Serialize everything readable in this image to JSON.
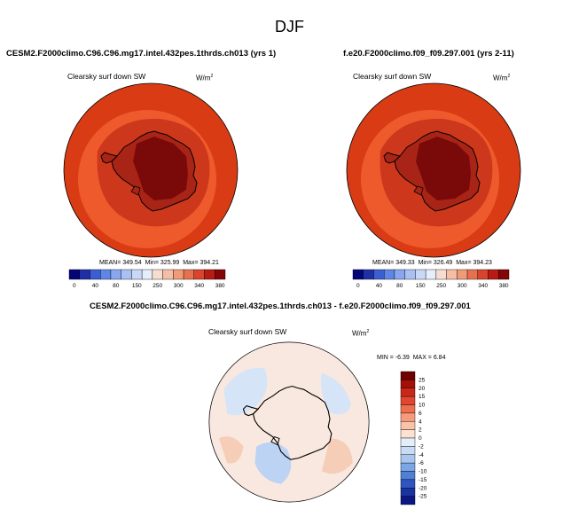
{
  "page": {
    "title": "DJF"
  },
  "panels": [
    {
      "title": "CESM2.F2000climo.C96.C96.mg17.intel.432pes.1thrds.ch013 (yrs 1)",
      "variable": "Clearsky surf down SW",
      "units_base": "W/m",
      "units_exp": "2",
      "stats": {
        "mean_label": "MEAN=",
        "mean": "349.54",
        "min_label": "Min=",
        "min": "325.99",
        "max_label": "Max=",
        "max": "394.21"
      }
    },
    {
      "title": "f.e20.F2000climo.f09_f09.297.001 (yrs 2-11)",
      "variable": "Clearsky surf down SW",
      "units_base": "W/m",
      "units_exp": "2",
      "stats": {
        "mean_label": "MEAN=",
        "mean": "349.33",
        "min_label": "Min=",
        "min": "326.49",
        "max_label": "Max=",
        "max": "394.23"
      }
    },
    {
      "title": "CESM2.F2000climo.C96.C96.mg17.intel.432pes.1thrds.ch013 - f.e20.F2000climo.f09_f09.297.001",
      "variable": "Clearsky surf down SW",
      "units_base": "W/m",
      "units_exp": "2",
      "stats": {
        "min_label": "MIN =",
        "min": "-6.39",
        "max_label": "MAX =",
        "max": "6.84"
      }
    }
  ],
  "colorbars": {
    "absolute": {
      "orientation": "horizontal",
      "colors": [
        "#05057a",
        "#1f2fa8",
        "#3b5ed0",
        "#5f86e6",
        "#88a7ef",
        "#aac0f3",
        "#cad8f7",
        "#e6edfb",
        "#f6ddd0",
        "#f4bfa4",
        "#ef9b78",
        "#e7704e",
        "#d8452c",
        "#b81b14",
        "#850606"
      ],
      "tick_labels": [
        "0",
        "40",
        "80",
        "150",
        "250",
        "300",
        "340",
        "380"
      ]
    },
    "difference": {
      "orientation": "vertical",
      "colors": [
        "#6e0000",
        "#a50f08",
        "#c8281a",
        "#e0472e",
        "#ee6f4f",
        "#f69a7b",
        "#fac2a9",
        "#fde2d4",
        "#e4eefb",
        "#c8dbf5",
        "#a8c5f0",
        "#7ba6e6",
        "#4f7fd6",
        "#2f56bf",
        "#1a33a0",
        "#0b1784"
      ],
      "tick_labels": [
        "25",
        "20",
        "15",
        "10",
        "6",
        "4",
        "2",
        "0",
        "-2",
        "-4",
        "-6",
        "-10",
        "-15",
        "-20",
        "-25"
      ]
    }
  },
  "map_colors": {
    "ocean_outer": "#d93c14",
    "ocean_inner": "#ef5a2c",
    "coast_band": "#c7331a",
    "land_edge": "#a82416",
    "interior": "#7a0a0a",
    "diff_background": "#f9e8df",
    "diff_warm": "#f6cdb7",
    "diff_cool": "#d6e4f8",
    "diff_cooler": "#bcd3f3"
  }
}
